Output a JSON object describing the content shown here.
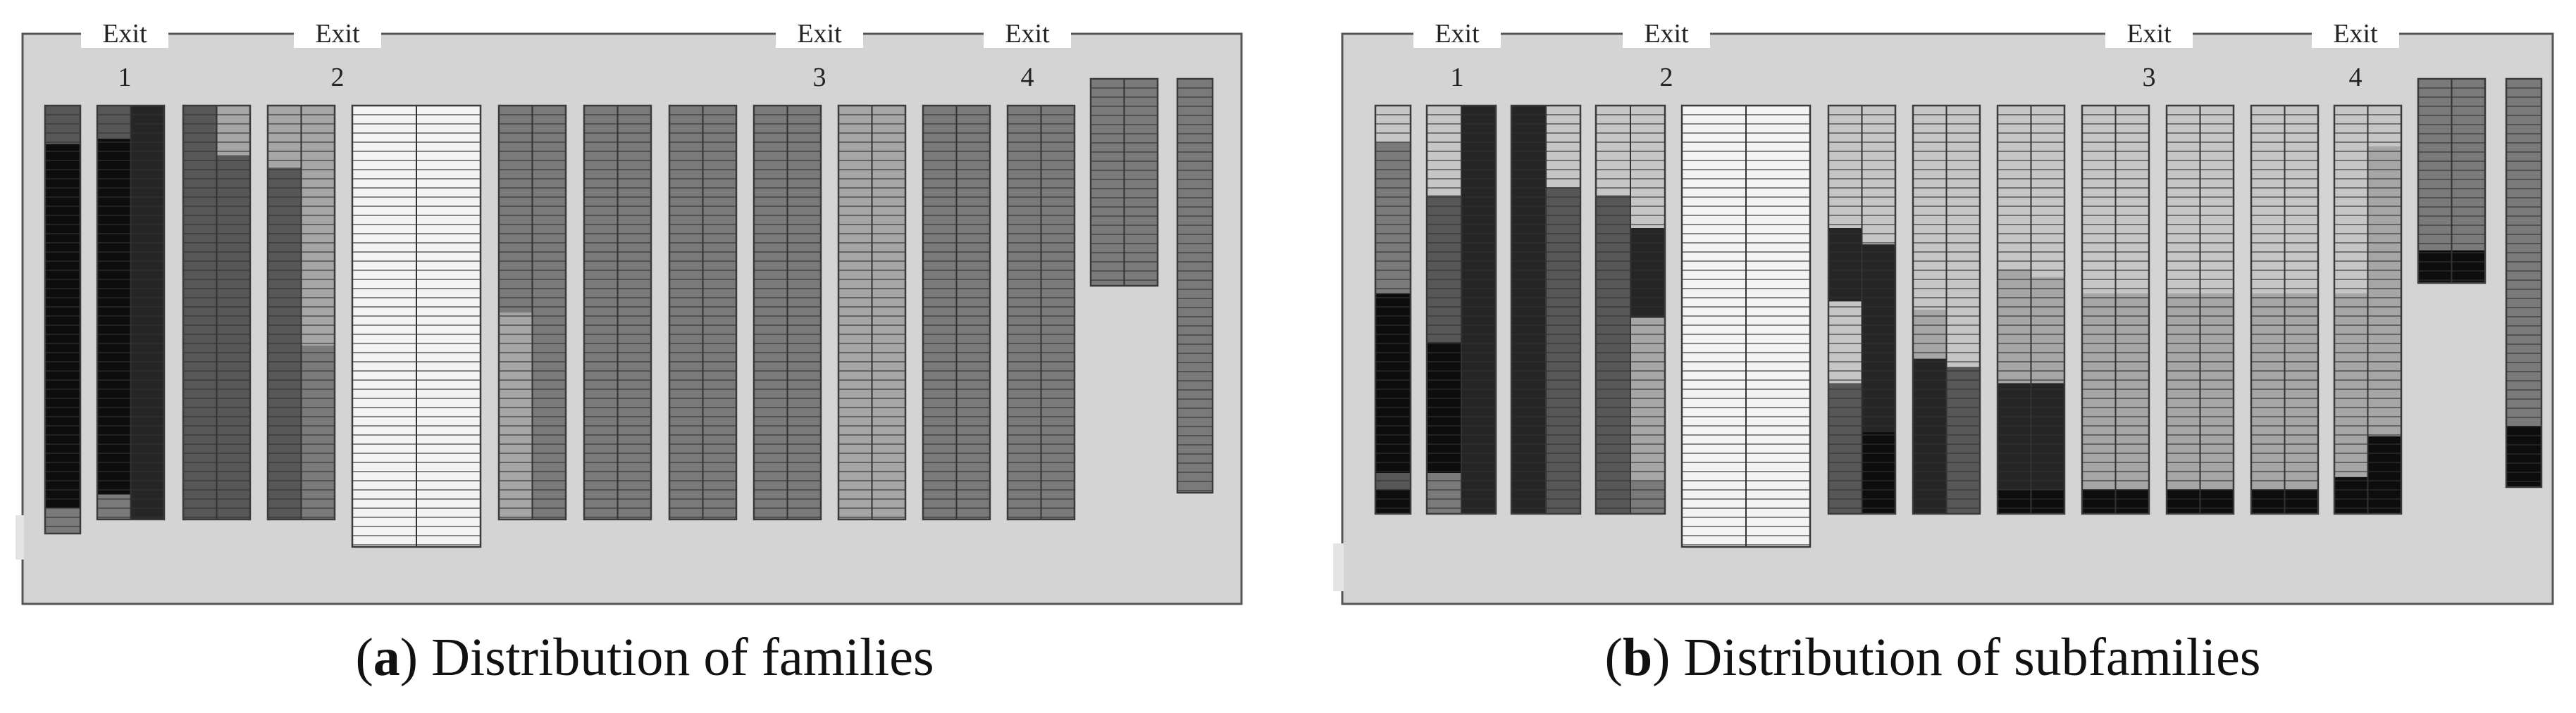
{
  "panels": [
    {
      "id": "a",
      "letter": "a",
      "caption": "Distribution of families",
      "exits": [
        {
          "label": "Exit",
          "number": "1"
        },
        {
          "label": "Exit",
          "number": "2"
        },
        {
          "label": "Exit",
          "number": "3"
        },
        {
          "label": "Exit",
          "number": "4"
        }
      ],
      "colors": {
        "frame": "#d4d4d4",
        "border": "#555555",
        "K": "#0d0d0d",
        "D": "#262626",
        "G": "#575757",
        "M": "#7a7a7a",
        "L": "#a6a6a6",
        "P": "#c6c6c6",
        "W": "#f3f3f3"
      }
    },
    {
      "id": "b",
      "letter": "b",
      "caption": "Distribution of subfamilies",
      "exits": [
        {
          "label": "Exit",
          "number": "1"
        },
        {
          "label": "Exit",
          "number": "2"
        },
        {
          "label": "Exit",
          "number": "3"
        },
        {
          "label": "Exit",
          "number": "4"
        }
      ],
      "colors": {
        "frame": "#d4d4d4",
        "border": "#555555",
        "K": "#0d0d0d",
        "D": "#262626",
        "G": "#575757",
        "M": "#7a7a7a",
        "L": "#a6a6a6",
        "P": "#c6c6c6",
        "W": "#f3f3f3"
      }
    }
  ]
}
